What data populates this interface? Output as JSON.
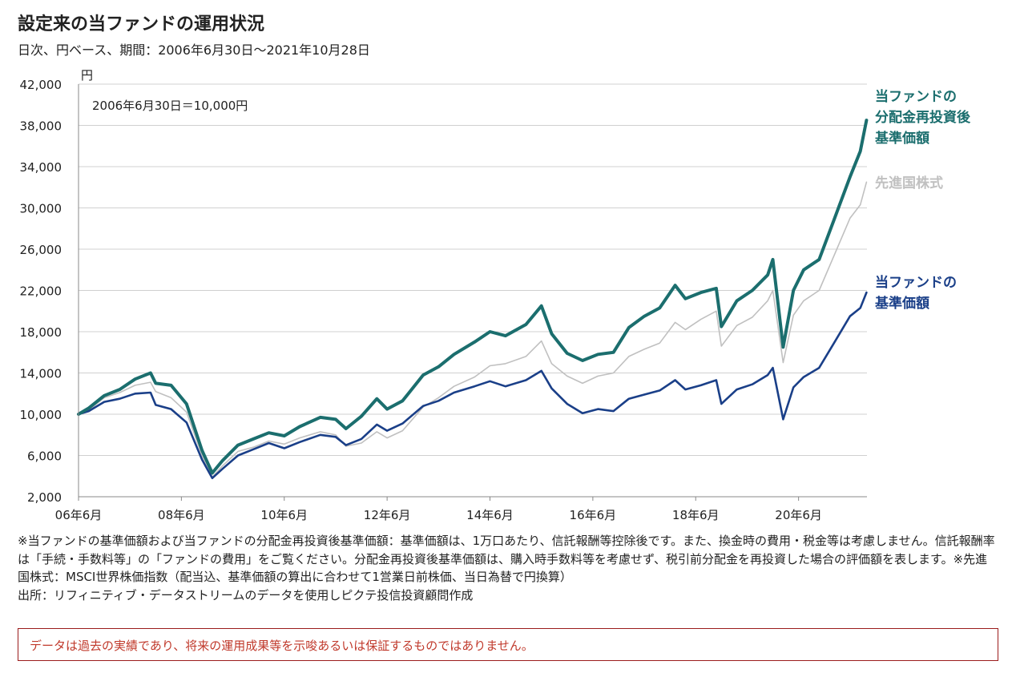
{
  "header": {
    "title": "設定来の当ファンドの運用状況",
    "subtitle": "日次、円ベース、期間：2006年6月30日～2021年10月28日"
  },
  "chart_data": {
    "type": "line",
    "y_unit": "円",
    "ylim": [
      2000,
      42000
    ],
    "y_ticks": [
      "42,000",
      "38,000",
      "34,000",
      "30,000",
      "26,000",
      "22,000",
      "18,000",
      "14,000",
      "10,000",
      "6,000",
      "2,000"
    ],
    "x_ticks": [
      "06年6月",
      "08年6月",
      "10年6月",
      "12年6月",
      "14年6月",
      "16年6月",
      "18年6月",
      "20年6月"
    ],
    "grid": "horizontal",
    "annotation": "2006年6月30日＝10,000円",
    "colors": {
      "reinvested": "#1b6e6e",
      "msci": "#c0c0c0",
      "nav": "#1a3f88"
    },
    "series": [
      {
        "name": "当ファンドの分配金再投資後基準価額",
        "key": "reinvested",
        "x": [
          2006.5,
          2006.7,
          2007.0,
          2007.3,
          2007.6,
          2007.9,
          2008.0,
          2008.3,
          2008.6,
          2008.9,
          2009.1,
          2009.3,
          2009.6,
          2009.9,
          2010.2,
          2010.5,
          2010.8,
          2011.2,
          2011.5,
          2011.7,
          2012.0,
          2012.3,
          2012.5,
          2012.8,
          2013.2,
          2013.5,
          2013.8,
          2014.2,
          2014.5,
          2014.8,
          2015.2,
          2015.5,
          2015.7,
          2016.0,
          2016.3,
          2016.6,
          2016.9,
          2017.2,
          2017.5,
          2017.8,
          2018.1,
          2018.3,
          2018.6,
          2018.9,
          2019.0,
          2019.3,
          2019.6,
          2019.9,
          2020.0,
          2020.2,
          2020.4,
          2020.6,
          2020.9,
          2021.2,
          2021.5,
          2021.7,
          2021.82
        ],
        "values": [
          10000,
          10600,
          11800,
          12400,
          13400,
          14000,
          13000,
          12800,
          11000,
          6500,
          4300,
          5500,
          7000,
          7600,
          8200,
          7900,
          8800,
          9700,
          9500,
          8600,
          9800,
          11500,
          10500,
          11300,
          13800,
          14600,
          15800,
          17000,
          18000,
          17600,
          18700,
          20500,
          17800,
          15900,
          15200,
          15800,
          16000,
          18400,
          19500,
          20300,
          22500,
          21200,
          21800,
          22200,
          18500,
          21000,
          22000,
          23500,
          25000,
          16500,
          22000,
          24000,
          25000,
          29000,
          33000,
          35500,
          38500
        ]
      },
      {
        "name": "先進国株式",
        "key": "msci",
        "x": [
          2006.5,
          2006.7,
          2007.0,
          2007.3,
          2007.6,
          2007.9,
          2008.0,
          2008.3,
          2008.6,
          2008.9,
          2009.1,
          2009.3,
          2009.6,
          2009.9,
          2010.2,
          2010.5,
          2010.8,
          2011.2,
          2011.5,
          2011.7,
          2012.0,
          2012.3,
          2012.5,
          2012.8,
          2013.2,
          2013.5,
          2013.8,
          2014.2,
          2014.5,
          2014.8,
          2015.2,
          2015.5,
          2015.7,
          2016.0,
          2016.3,
          2016.6,
          2016.9,
          2017.2,
          2017.5,
          2017.8,
          2018.1,
          2018.3,
          2018.6,
          2018.9,
          2019.0,
          2019.3,
          2019.6,
          2019.9,
          2020.0,
          2020.2,
          2020.4,
          2020.6,
          2020.9,
          2021.2,
          2021.5,
          2021.7,
          2021.82
        ],
        "values": [
          10000,
          10400,
          11600,
          12100,
          12800,
          13100,
          12200,
          11600,
          10200,
          6000,
          3900,
          5000,
          6400,
          6800,
          7400,
          7100,
          7700,
          8300,
          8000,
          6900,
          7200,
          8300,
          7700,
          8400,
          10700,
          11600,
          12700,
          13600,
          14700,
          14900,
          15600,
          17100,
          14900,
          13700,
          13000,
          13700,
          14000,
          15600,
          16300,
          16900,
          18900,
          18200,
          19200,
          20000,
          16600,
          18600,
          19400,
          21000,
          22000,
          15000,
          19600,
          21000,
          22000,
          25500,
          29000,
          30300,
          32500
        ]
      },
      {
        "name": "当ファンドの基準価額",
        "key": "nav",
        "x": [
          2006.5,
          2006.7,
          2007.0,
          2007.3,
          2007.6,
          2007.9,
          2008.0,
          2008.3,
          2008.6,
          2008.9,
          2009.1,
          2009.3,
          2009.6,
          2009.9,
          2010.2,
          2010.5,
          2010.8,
          2011.2,
          2011.5,
          2011.7,
          2012.0,
          2012.3,
          2012.5,
          2012.8,
          2013.2,
          2013.5,
          2013.8,
          2014.2,
          2014.5,
          2014.8,
          2015.2,
          2015.5,
          2015.7,
          2016.0,
          2016.3,
          2016.6,
          2016.9,
          2017.2,
          2017.5,
          2017.8,
          2018.1,
          2018.3,
          2018.6,
          2018.9,
          2019.0,
          2019.3,
          2019.6,
          2019.9,
          2020.0,
          2020.2,
          2020.4,
          2020.6,
          2020.9,
          2021.2,
          2021.5,
          2021.7,
          2021.82
        ],
        "values": [
          10000,
          10300,
          11200,
          11500,
          12000,
          12100,
          10900,
          10500,
          9200,
          5600,
          3800,
          4700,
          6000,
          6600,
          7200,
          6700,
          7300,
          8000,
          7800,
          7000,
          7600,
          9000,
          8400,
          9100,
          10800,
          11300,
          12100,
          12700,
          13200,
          12700,
          13300,
          14200,
          12500,
          11000,
          10100,
          10500,
          10300,
          11500,
          11900,
          12300,
          13300,
          12400,
          12800,
          13300,
          11000,
          12400,
          12900,
          13800,
          14500,
          9500,
          12600,
          13600,
          14500,
          17000,
          19500,
          20300,
          21800
        ]
      }
    ],
    "legend_labels": {
      "reinvested": [
        "当ファンドの",
        "分配金再投資後",
        "基準価額"
      ],
      "msci": [
        "先進国株式"
      ],
      "nav": [
        "当ファンドの",
        "基準価額"
      ]
    }
  },
  "notes": [
    "※当ファンドの基準価額および当ファンドの分配金再投資後基準価額：基準価額は、1万口あたり、信託報酬等控除後です。また、換金時の費用・税金等は考慮しません。信託報酬率は「手続・手数料等」の「ファンドの費用」をご覧ください。分配金再投資後基準価額は、購入時手数料等を考慮せず、税引前分配金を再投資した場合の評価額を表します。※先進国株式：MSCI世界株価指数（配当込、基準価額の算出に合わせて1営業日前株価、当日為替で円換算）",
    "出所：リフィニティブ・データストリームのデータを使用しピクテ投信投資顧問作成"
  ],
  "disclaimer": "データは過去の実績であり、将来の運用成果等を示唆あるいは保証するものではありません。"
}
